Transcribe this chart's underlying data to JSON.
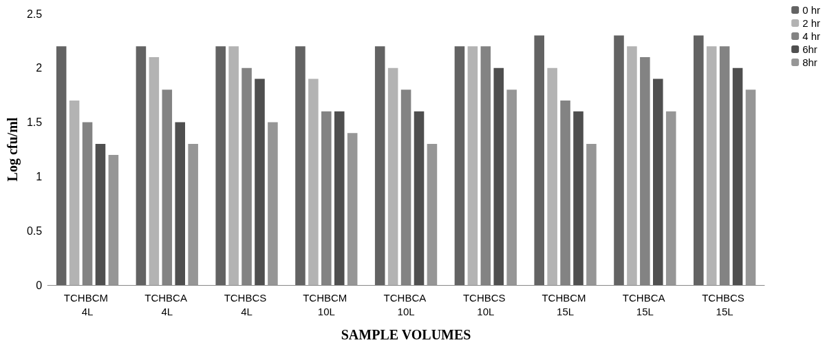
{
  "chart_data": {
    "type": "bar",
    "xlabel": "SAMPLE VOLUMES",
    "ylabel": "Log cfu/ml",
    "categories": [
      "TCHBCM 4L",
      "TCHBCA 4L",
      "TCHBCS 4L",
      "TCHBCM 10L",
      "TCHBCA 10L",
      "TCHBCS 10L",
      "TCHBCM 15L",
      "TCHBCA 15L",
      "TCHBCS 15L"
    ],
    "series": [
      {
        "name": "0 hr",
        "color": "#636363",
        "values": [
          2.2,
          2.2,
          2.2,
          2.2,
          2.2,
          2.2,
          2.3,
          2.3,
          2.3
        ]
      },
      {
        "name": "2 hr",
        "color": "#b3b3b3",
        "values": [
          1.7,
          2.1,
          2.2,
          1.9,
          2.0,
          2.2,
          2.0,
          2.2,
          2.2
        ]
      },
      {
        "name": "4 hr",
        "color": "#838383",
        "values": [
          1.5,
          1.8,
          2.0,
          1.6,
          1.8,
          2.2,
          1.7,
          2.1,
          2.2
        ]
      },
      {
        "name": "6hr",
        "color": "#4f4f4f",
        "values": [
          1.3,
          1.5,
          1.9,
          1.6,
          1.6,
          2.0,
          1.6,
          1.9,
          2.0
        ]
      },
      {
        "name": "8hr",
        "color": "#969696",
        "values": [
          1.2,
          1.3,
          1.5,
          1.4,
          1.3,
          1.8,
          1.3,
          1.6,
          1.8
        ]
      }
    ],
    "ylim": [
      0,
      2.5
    ],
    "yticks": [
      0,
      0.5,
      1,
      1.5,
      2,
      2.5
    ],
    "grid": false,
    "legend": "top right"
  }
}
